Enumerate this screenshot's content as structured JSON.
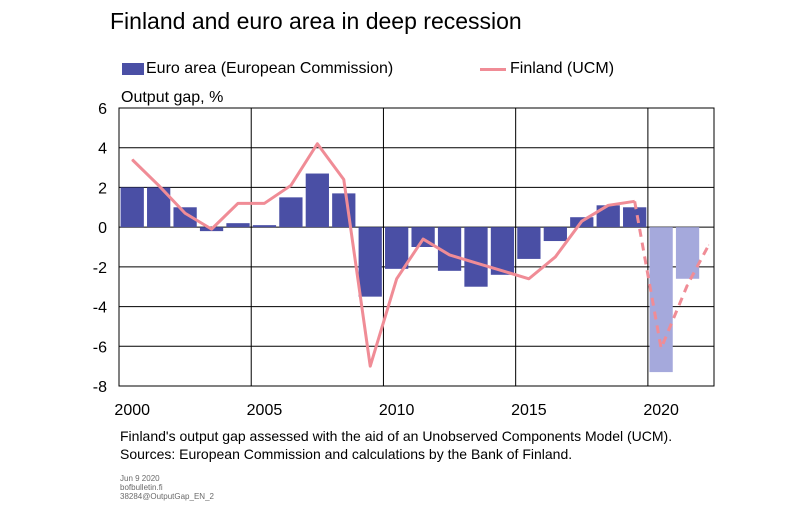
{
  "title": "Finland and euro area in deep recession",
  "footnotes": [
    "Finland's output gap assessed with the aid of an Unobserved Components Model (UCM).",
    "Sources: European Commission and calculations by the Bank of Finland."
  ],
  "meta": [
    "Jun 9 2020",
    "bofbulletin.fi",
    "38284@OutputGap_EN_2"
  ],
  "colors": {
    "euro_bar": "#4a4fa5",
    "euro_bar_forecast": "#a5a9dc",
    "finland_line": "#f08c96"
  },
  "chart_data": {
    "type": "bar",
    "title": "Finland and euro area in deep recession",
    "ylabel": "Output gap, %",
    "xlabel": "",
    "ylim": [
      -8,
      6
    ],
    "yticks": [
      6,
      4,
      2,
      0,
      -2,
      -4,
      -6,
      -8
    ],
    "xlim": [
      1999.5,
      2022
    ],
    "xticks": [
      2000,
      2005,
      2010,
      2015,
      2020
    ],
    "grid": true,
    "legend_position": "top",
    "categories": [
      2000,
      2001,
      2002,
      2003,
      2004,
      2005,
      2006,
      2007,
      2008,
      2009,
      2010,
      2011,
      2012,
      2013,
      2014,
      2015,
      2016,
      2017,
      2018,
      2019,
      2020,
      2021
    ],
    "series": [
      {
        "name": "Euro area (European Commission)",
        "kind": "bar",
        "values": [
          2.0,
          2.0,
          1.0,
          -0.2,
          0.2,
          0.1,
          1.5,
          2.7,
          1.7,
          -3.5,
          -2.1,
          -1.0,
          -2.2,
          -3.0,
          -2.4,
          -1.6,
          -0.7,
          0.5,
          1.1,
          1.0,
          -7.3,
          -2.6
        ],
        "forecast_from": 2020
      },
      {
        "name": "Finland (UCM)",
        "kind": "line",
        "values": [
          3.4,
          2.1,
          0.7,
          -0.1,
          1.2,
          1.2,
          2.1,
          4.2,
          2.4,
          -7.0,
          -2.6,
          -0.6,
          -1.4,
          -1.8,
          -2.2,
          -2.6,
          -1.5,
          0.3,
          1.1,
          1.3,
          -6.1,
          -2.9,
          -0.9
        ],
        "x": [
          2000,
          2001,
          2002,
          2003,
          2004,
          2005,
          2006,
          2007,
          2008,
          2009,
          2010,
          2011,
          2012,
          2013,
          2014,
          2015,
          2016,
          2017,
          2018,
          2019,
          2020,
          2021,
          2021.8
        ],
        "forecast_from": 2019
      }
    ]
  }
}
